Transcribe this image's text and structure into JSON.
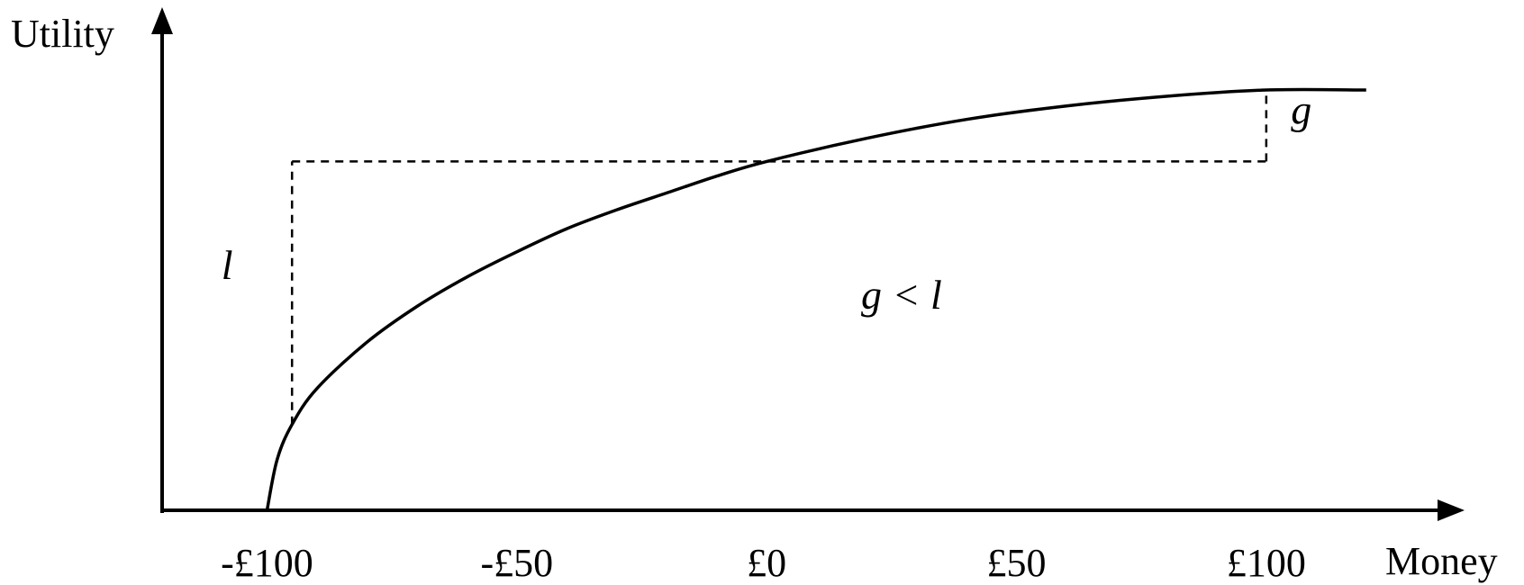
{
  "chart_data": {
    "type": "line",
    "xlabel": "Money",
    "ylabel": "Utility",
    "x_ticks": [
      {
        "value": -100,
        "label": "-£100"
      },
      {
        "value": -50,
        "label": "-£50"
      },
      {
        "value": 0,
        "label": "£0"
      },
      {
        "value": 50,
        "label": "£50"
      },
      {
        "value": 100,
        "label": "£100"
      }
    ],
    "xlim": [
      -121,
      135
    ],
    "ylim": [
      0,
      10
    ],
    "grid": false,
    "series": [
      {
        "values": [
          {
            "x": -100,
            "y": 0
          },
          {
            "x": -98,
            "y": 1.2
          },
          {
            "x": -95,
            "y": 2.04
          },
          {
            "x": -90,
            "y": 2.9
          },
          {
            "x": -80,
            "y": 4.0
          },
          {
            "x": -70,
            "y": 4.85
          },
          {
            "x": -60,
            "y": 5.55
          },
          {
            "x": -50,
            "y": 6.15
          },
          {
            "x": -40,
            "y": 6.7
          },
          {
            "x": -30,
            "y": 7.15
          },
          {
            "x": -20,
            "y": 7.55
          },
          {
            "x": -10,
            "y": 7.95
          },
          {
            "x": 0,
            "y": 8.3
          },
          {
            "x": 20,
            "y": 8.85
          },
          {
            "x": 40,
            "y": 9.3
          },
          {
            "x": 60,
            "y": 9.62
          },
          {
            "x": 80,
            "y": 9.85
          },
          {
            "x": 100,
            "y": 10.0
          },
          {
            "x": 120,
            "y": 10.0
          }
        ]
      }
    ],
    "reference_lines": {
      "loss_x": -95,
      "gain_x": 100,
      "reference_y": 8.3
    },
    "annotations": [
      {
        "text": "l",
        "x": -108,
        "y": 5.5
      },
      {
        "text": "g",
        "x": 107,
        "y": 9.2
      },
      {
        "text": "g < l",
        "x": 27,
        "y": 4.8
      }
    ]
  }
}
